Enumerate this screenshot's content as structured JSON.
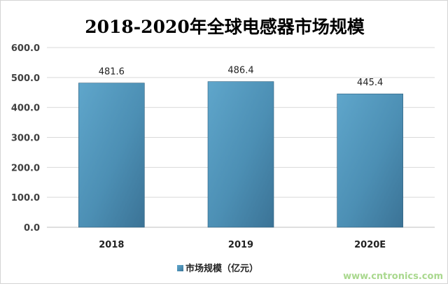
{
  "chart_data": {
    "type": "bar",
    "title": "2018-2020年全球电感器市场规模",
    "categories": [
      "2018",
      "2019",
      "2020E"
    ],
    "series": [
      {
        "name": "市场规模（亿元）",
        "values": [
          481.6,
          486.4,
          445.4
        ]
      }
    ],
    "data_labels": [
      "481.6",
      "486.4",
      "445.4"
    ],
    "y_ticks": [
      "0.0",
      "100.0",
      "200.0",
      "300.0",
      "400.0",
      "500.0",
      "600.0"
    ],
    "ylim": [
      0,
      600
    ],
    "grid": true,
    "legend_position": "bottom",
    "bar_color": "#4f93b8"
  },
  "watermark": "www.cntronics.com"
}
